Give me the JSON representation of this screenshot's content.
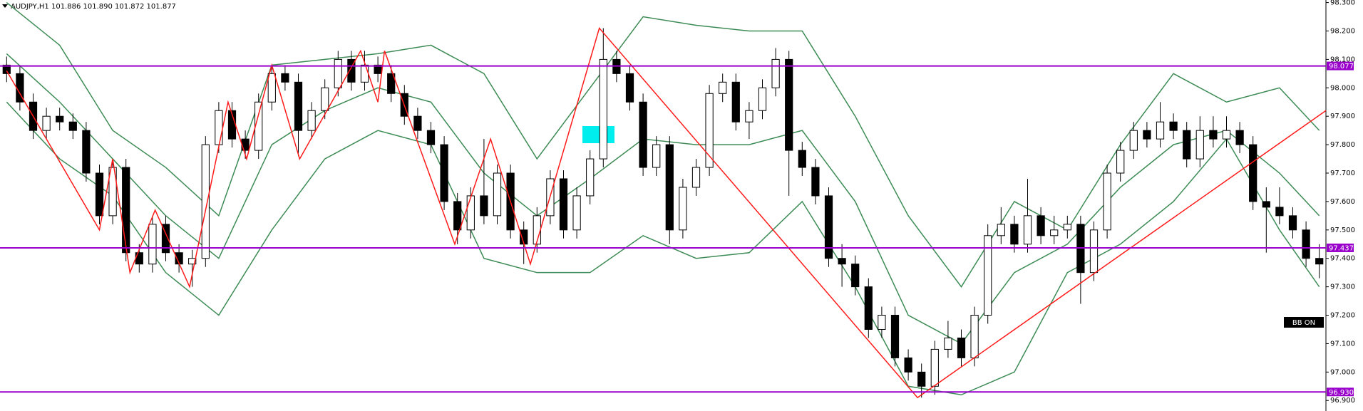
{
  "chart_data": {
    "type": "candlestick",
    "title": "AUDJPY,H1  101.886 101.890 101.872 101.877",
    "badge": "BB ON",
    "color_up": "#ffffff",
    "color_down": "#000000",
    "xlim": [
      -0.5,
      99.5
    ],
    "ylim": [
      96.863,
      98.309
    ],
    "yticks": [
      {
        "value": 98.3,
        "label": "98.300"
      },
      {
        "value": 98.2,
        "label": "98.200"
      },
      {
        "value": 98.1,
        "label": "98.100"
      },
      {
        "value": 98.0,
        "label": "98.000"
      },
      {
        "value": 97.9,
        "label": "97.900"
      },
      {
        "value": 97.8,
        "label": "97.800"
      },
      {
        "value": 97.7,
        "label": "97.700"
      },
      {
        "value": 97.6,
        "label": "97.600"
      },
      {
        "value": 97.5,
        "label": "97.500"
      },
      {
        "value": 97.4,
        "label": "97.400"
      },
      {
        "value": 97.3,
        "label": "97.300"
      },
      {
        "value": 97.2,
        "label": "97.200"
      },
      {
        "value": 97.1,
        "label": "97.100"
      },
      {
        "value": 97.0,
        "label": "97.000"
      },
      {
        "value": 96.9,
        "label": "96.900"
      }
    ],
    "levels": [
      98.077,
      97.437,
      {
        "value": 96.93,
        "label": "96.930"
      }
    ],
    "level_color": "#9900cc",
    "open": [
      98.08,
      98.05,
      97.95,
      97.85,
      97.9,
      97.88,
      97.85,
      97.7,
      97.55,
      97.72,
      97.42,
      97.38,
      97.52,
      97.42,
      97.38,
      97.4,
      97.8,
      97.92,
      97.82,
      97.78,
      97.95,
      98.05,
      98.02,
      97.85,
      97.92,
      98.0,
      98.1,
      98.02,
      98.08,
      98.05,
      97.98,
      97.9,
      97.85,
      97.8,
      97.6,
      97.5,
      97.62,
      97.55,
      97.7,
      97.5,
      97.45,
      97.55,
      97.68,
      97.5,
      97.62,
      97.75,
      98.1,
      98.05,
      97.95,
      97.72,
      97.8,
      97.5,
      97.65,
      97.72,
      97.98,
      98.02,
      97.88,
      97.92,
      98.0,
      98.1,
      97.78,
      97.72,
      97.62,
      97.4,
      97.38,
      97.3,
      97.15,
      97.2,
      97.05,
      97.0,
      96.95,
      97.08,
      97.12,
      97.05,
      97.2,
      97.48,
      97.52,
      97.45,
      97.55,
      97.48,
      97.5,
      97.52,
      97.35,
      97.5,
      97.7,
      97.78,
      97.85,
      97.82,
      97.88,
      97.85,
      97.75,
      97.85,
      97.82,
      97.85,
      97.8,
      97.6,
      97.58,
      97.55,
      97.5,
      97.4
    ],
    "high": [
      98.11,
      98.08,
      97.98,
      97.93,
      97.93,
      97.91,
      97.88,
      97.73,
      97.75,
      97.75,
      97.45,
      97.55,
      97.55,
      97.45,
      97.43,
      97.83,
      97.95,
      97.95,
      97.85,
      97.98,
      98.08,
      98.08,
      98.05,
      97.95,
      98.03,
      98.13,
      98.13,
      98.13,
      98.11,
      98.08,
      98.01,
      97.93,
      97.88,
      97.83,
      97.63,
      97.65,
      97.82,
      97.73,
      97.73,
      97.53,
      97.58,
      97.71,
      97.71,
      97.65,
      97.78,
      98.21,
      98.13,
      98.08,
      97.98,
      97.83,
      97.83,
      97.68,
      97.75,
      98.01,
      98.05,
      98.05,
      97.95,
      98.03,
      98.14,
      98.13,
      97.81,
      97.75,
      97.65,
      97.45,
      97.41,
      97.33,
      97.23,
      97.23,
      97.08,
      97.03,
      97.11,
      97.18,
      97.15,
      97.23,
      97.52,
      97.58,
      97.55,
      97.68,
      97.58,
      97.55,
      97.55,
      97.55,
      97.53,
      97.73,
      97.81,
      97.88,
      97.88,
      97.95,
      97.91,
      97.88,
      97.9,
      97.9,
      97.9,
      97.88,
      97.83,
      97.65,
      97.65,
      97.58,
      97.53,
      97.45
    ],
    "low": [
      98.02,
      97.92,
      97.82,
      97.82,
      97.85,
      97.82,
      97.67,
      97.52,
      97.52,
      97.39,
      97.35,
      97.35,
      97.39,
      97.35,
      97.3,
      97.37,
      97.77,
      97.79,
      97.75,
      97.75,
      97.92,
      97.99,
      97.76,
      97.82,
      97.89,
      97.97,
      97.99,
      97.99,
      98.02,
      97.95,
      97.87,
      97.82,
      97.77,
      97.57,
      97.45,
      97.47,
      97.52,
      97.52,
      97.47,
      97.38,
      97.42,
      97.52,
      97.47,
      97.47,
      97.59,
      97.72,
      98.02,
      97.92,
      97.69,
      97.69,
      97.45,
      97.47,
      97.62,
      97.69,
      97.95,
      97.85,
      97.82,
      97.89,
      97.97,
      97.62,
      97.69,
      97.59,
      97.37,
      97.3,
      97.27,
      97.12,
      97.12,
      97.02,
      96.97,
      96.91,
      96.92,
      97.05,
      97.02,
      97.02,
      97.17,
      97.45,
      97.42,
      97.42,
      97.45,
      97.45,
      97.47,
      97.24,
      97.32,
      97.47,
      97.67,
      97.75,
      97.79,
      97.79,
      97.82,
      97.72,
      97.72,
      97.79,
      97.79,
      97.77,
      97.57,
      97.42,
      97.52,
      97.47,
      97.37,
      97.33
    ],
    "close": [
      98.05,
      97.95,
      97.85,
      97.9,
      97.88,
      97.85,
      97.7,
      97.55,
      97.72,
      97.42,
      97.38,
      97.52,
      97.42,
      97.38,
      97.4,
      97.8,
      97.92,
      97.82,
      97.78,
      97.95,
      98.05,
      98.02,
      97.85,
      97.92,
      98.0,
      98.1,
      98.02,
      98.08,
      98.05,
      97.98,
      97.9,
      97.85,
      97.8,
      97.6,
      97.5,
      97.62,
      97.55,
      97.7,
      97.5,
      97.45,
      97.55,
      97.68,
      97.5,
      97.62,
      97.75,
      98.1,
      98.05,
      97.95,
      97.72,
      97.8,
      97.5,
      97.65,
      97.72,
      97.98,
      98.02,
      97.88,
      97.92,
      98.0,
      98.1,
      97.78,
      97.72,
      97.62,
      97.4,
      97.38,
      97.3,
      97.15,
      97.2,
      97.05,
      97.0,
      96.95,
      97.08,
      97.12,
      97.05,
      97.2,
      97.48,
      97.52,
      97.45,
      97.55,
      97.48,
      97.5,
      97.52,
      97.35,
      97.5,
      97.7,
      97.78,
      97.85,
      97.82,
      97.88,
      97.85,
      97.75,
      97.85,
      97.82,
      97.85,
      97.8,
      97.6,
      97.58,
      97.55,
      97.5,
      97.4,
      97.38
    ],
    "overlays": [
      {
        "type": "line",
        "color": "#3d8b55",
        "x": [
          0,
          4,
          8,
          12,
          16,
          20,
          24,
          28,
          32,
          36,
          40,
          44,
          48,
          52,
          56,
          60,
          64,
          68,
          72,
          76,
          80,
          84,
          88,
          92,
          96,
          99
        ],
        "values": [
          98.3,
          98.15,
          97.85,
          97.72,
          97.55,
          98.08,
          98.1,
          98.12,
          98.15,
          98.05,
          97.75,
          98.0,
          98.25,
          98.22,
          98.2,
          98.2,
          97.9,
          97.55,
          97.3,
          97.6,
          97.5,
          97.8,
          98.05,
          97.95,
          98.0,
          97.85
        ]
      },
      {
        "type": "line",
        "color": "#3d8b55",
        "x": [
          0,
          4,
          8,
          12,
          16,
          20,
          24,
          28,
          32,
          36,
          40,
          44,
          48,
          52,
          56,
          60,
          64,
          68,
          72,
          76,
          80,
          84,
          88,
          92,
          96,
          99
        ],
        "values": [
          98.12,
          97.95,
          97.75,
          97.55,
          97.4,
          97.8,
          97.92,
          98.0,
          97.95,
          97.7,
          97.55,
          97.68,
          97.82,
          97.8,
          97.8,
          97.85,
          97.6,
          97.2,
          97.1,
          97.35,
          97.45,
          97.65,
          97.8,
          97.85,
          97.7,
          97.55
        ]
      },
      {
        "type": "line",
        "color": "#3d8b55",
        "x": [
          0,
          4,
          8,
          12,
          16,
          20,
          24,
          28,
          32,
          36,
          40,
          44,
          48,
          52,
          56,
          60,
          64,
          68,
          72,
          76,
          80,
          84,
          88,
          92,
          96,
          99
        ],
        "values": [
          97.95,
          97.75,
          97.62,
          97.35,
          97.2,
          97.5,
          97.75,
          97.85,
          97.8,
          97.4,
          97.35,
          97.35,
          97.48,
          97.4,
          97.42,
          97.6,
          97.3,
          96.95,
          96.92,
          97.0,
          97.35,
          97.45,
          97.6,
          97.82,
          97.5,
          97.3
        ]
      },
      {
        "type": "line",
        "color": "#ff1a1a",
        "x": [
          0,
          7.0,
          8.0,
          9.3,
          11.2,
          13.8,
          16.7,
          18.1,
          20.0,
          22.1,
          26.7,
          28.0,
          28.5,
          33.8,
          36.5,
          39.5,
          44.7,
          68.7,
          99.5
        ],
        "values": [
          98.06,
          97.5,
          97.75,
          97.35,
          97.57,
          97.3,
          97.95,
          97.75,
          98.08,
          97.75,
          98.13,
          97.95,
          98.13,
          97.45,
          97.82,
          97.38,
          98.21,
          96.91,
          97.92
        ]
      }
    ]
  }
}
